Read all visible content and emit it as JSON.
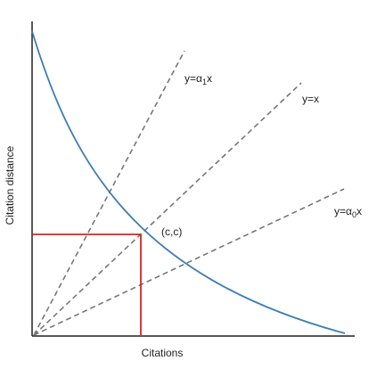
{
  "labels": {
    "xlabel": "Citations",
    "ylabel": "Citation distance",
    "point": "(c,c)",
    "line_alpha1_prefix": "y=α",
    "line_alpha1_sub": "1",
    "line_alpha1_suffix": "x",
    "line_identity": "y=x",
    "line_alpha0_prefix": "y=α",
    "line_alpha0_sub": "0",
    "line_alpha0_suffix": "x"
  },
  "colors": {
    "curve": "#3c7db6",
    "dashed": "#777777",
    "highlight": "#dd1f1f",
    "axes": "#222222"
  }
}
